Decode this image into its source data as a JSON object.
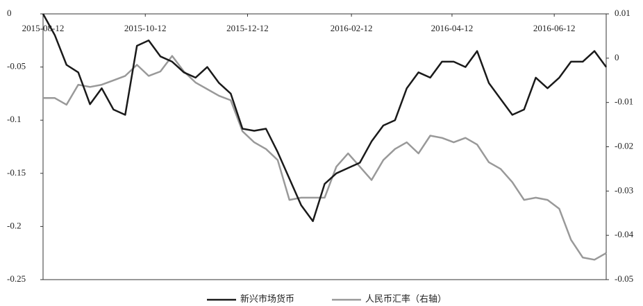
{
  "chart_data": {
    "type": "line",
    "x": [
      "2015-08-12",
      "2015-08-19",
      "2015-08-26",
      "2015-09-02",
      "2015-09-09",
      "2015-09-16",
      "2015-09-23",
      "2015-09-30",
      "2015-10-07",
      "2015-10-14",
      "2015-10-21",
      "2015-10-28",
      "2015-11-04",
      "2015-11-11",
      "2015-11-18",
      "2015-11-25",
      "2015-12-02",
      "2015-12-09",
      "2015-12-16",
      "2015-12-23",
      "2015-12-30",
      "2016-01-06",
      "2016-01-13",
      "2016-01-20",
      "2016-01-27",
      "2016-02-03",
      "2016-02-10",
      "2016-02-17",
      "2016-02-24",
      "2016-03-02",
      "2016-03-09",
      "2016-03-16",
      "2016-03-23",
      "2016-03-30",
      "2016-04-06",
      "2016-04-13",
      "2016-04-20",
      "2016-04-27",
      "2016-05-04",
      "2016-05-11",
      "2016-05-18",
      "2016-05-25",
      "2016-06-01",
      "2016-06-08",
      "2016-06-15",
      "2016-06-22",
      "2016-06-29",
      "2016-07-06",
      "2016-07-13"
    ],
    "xlim": [
      "2015-08-12",
      "2016-07-13"
    ],
    "xticks": [
      "2015-08-12",
      "2015-10-12",
      "2015-12-12",
      "2016-02-12",
      "2016-04-12",
      "2016-06-12"
    ],
    "ylim": [
      -0.25,
      0
    ],
    "yticks": [
      0,
      -0.05,
      -0.1,
      -0.15,
      -0.2,
      -0.25
    ],
    "y2lim": [
      -0.05,
      0.01
    ],
    "y2ticks": [
      0.01,
      0,
      -0.01,
      -0.02,
      -0.03,
      -0.04,
      -0.05
    ],
    "series": [
      {
        "name": "新兴市场货币",
        "color": "#1a1a1a",
        "values": [
          0,
          -0.02,
          -0.048,
          -0.055,
          -0.085,
          -0.07,
          -0.09,
          -0.095,
          -0.03,
          -0.025,
          -0.04,
          -0.045,
          -0.055,
          -0.06,
          -0.05,
          -0.065,
          -0.075,
          -0.108,
          -0.11,
          -0.108,
          -0.13,
          -0.155,
          -0.18,
          -0.195,
          -0.16,
          -0.15,
          -0.145,
          -0.14,
          -0.12,
          -0.105,
          -0.1,
          -0.07,
          -0.055,
          -0.06,
          -0.045,
          -0.045,
          -0.05,
          -0.035,
          -0.065,
          -0.08,
          -0.095,
          -0.09,
          -0.06,
          -0.07,
          -0.06,
          -0.045,
          -0.045,
          -0.035,
          -0.05
        ]
      },
      {
        "name": "人民币汇率（右轴）",
        "color": "#999999",
        "axis": "y2",
        "values": [
          -0.009,
          -0.009,
          -0.0105,
          -0.006,
          -0.0065,
          -0.006,
          -0.005,
          -0.004,
          -0.0015,
          -0.004,
          -0.003,
          0.0005,
          -0.003,
          -0.0055,
          -0.007,
          -0.0085,
          -0.0095,
          -0.0165,
          -0.019,
          -0.0205,
          -0.023,
          -0.032,
          -0.0315,
          -0.0315,
          -0.0315,
          -0.0245,
          -0.0215,
          -0.0245,
          -0.0275,
          -0.023,
          -0.0205,
          -0.019,
          -0.0215,
          -0.0175,
          -0.018,
          -0.019,
          -0.018,
          -0.0195,
          -0.0235,
          -0.025,
          -0.028,
          -0.032,
          -0.0315,
          -0.032,
          -0.034,
          -0.041,
          -0.045,
          -0.0455,
          -0.044
        ]
      }
    ]
  }
}
